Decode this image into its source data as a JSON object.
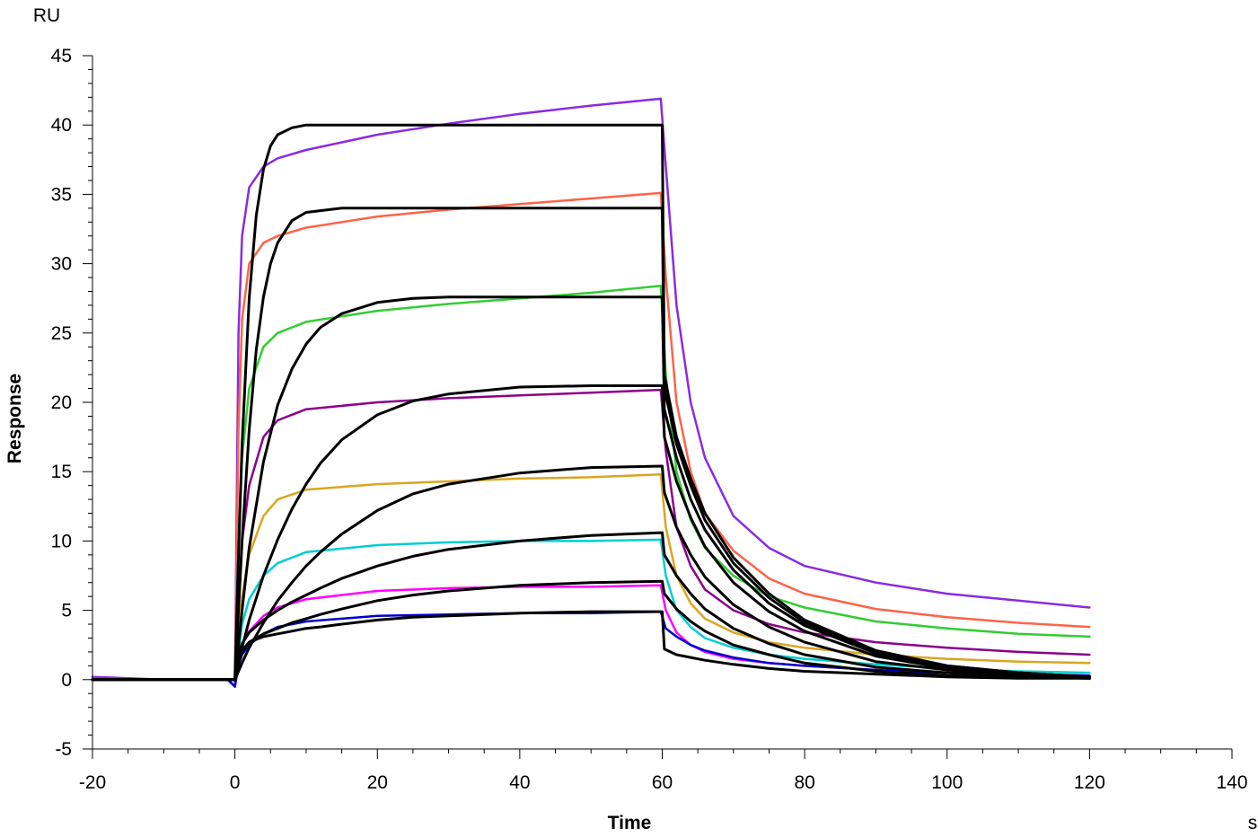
{
  "chart_data": {
    "type": "line",
    "title": "",
    "xlabel": "Time",
    "ylabel": "Response",
    "x_unit": "s",
    "y_unit": "RU",
    "xlim": [
      -20,
      140
    ],
    "ylim": [
      -5,
      45
    ],
    "x_ticks": [
      -20,
      0,
      20,
      40,
      60,
      80,
      100,
      120,
      140
    ],
    "y_ticks": [
      -5,
      0,
      5,
      10,
      15,
      20,
      25,
      30,
      35,
      40,
      45
    ],
    "x_tick_labels": [
      "-20",
      "0",
      "20",
      "40",
      "60",
      "80",
      "100",
      "120",
      "140"
    ],
    "y_tick_labels": [
      "-5",
      "0",
      "5",
      "10",
      "15",
      "20",
      "25",
      "30",
      "35",
      "40",
      "45"
    ],
    "grid": false,
    "legend": "none",
    "series": [
      {
        "color": "#8a2be2",
        "x": [
          -20,
          -10,
          -1,
          0,
          0.5,
          1,
          2,
          4,
          6,
          10,
          20,
          30,
          40,
          50,
          59.8,
          60.5,
          62,
          64,
          66,
          70,
          75,
          80,
          90,
          100,
          110,
          120
        ],
        "y": [
          0.2,
          0,
          0,
          -0.5,
          25,
          32,
          35.5,
          37,
          37.6,
          38.2,
          39.3,
          40.1,
          40.8,
          41.4,
          41.9,
          37,
          27,
          20,
          16,
          11.8,
          9.5,
          8.2,
          7,
          6.2,
          5.7,
          5.2
        ]
      },
      {
        "color": "#ff6347",
        "x": [
          -20,
          -10,
          -1,
          0,
          0.5,
          1,
          2,
          4,
          6,
          10,
          20,
          30,
          40,
          50,
          59.8,
          60.5,
          62,
          64,
          66,
          70,
          75,
          80,
          90,
          100,
          110,
          120
        ],
        "y": [
          0,
          0,
          0,
          -0.5,
          18,
          26,
          30,
          31.5,
          32,
          32.6,
          33.4,
          33.9,
          34.3,
          34.7,
          35.1,
          29,
          20,
          15,
          12,
          9.3,
          7.3,
          6.2,
          5.1,
          4.5,
          4.1,
          3.8
        ]
      },
      {
        "color": "#32cd32",
        "x": [
          -20,
          -10,
          -1,
          0,
          0.5,
          1,
          2,
          4,
          6,
          10,
          20,
          30,
          40,
          50,
          59.8,
          60.5,
          62,
          64,
          66,
          70,
          75,
          80,
          90,
          100,
          110,
          120
        ],
        "y": [
          0,
          0,
          0,
          -0.5,
          10,
          16,
          21,
          24,
          25,
          25.8,
          26.6,
          27.1,
          27.5,
          27.9,
          28.4,
          22,
          15,
          11.5,
          9.5,
          7.5,
          6,
          5.2,
          4.2,
          3.7,
          3.3,
          3.1
        ]
      },
      {
        "color": "#8b008b",
        "x": [
          -20,
          -10,
          -1,
          0,
          0.5,
          1,
          2,
          4,
          6,
          10,
          20,
          30,
          40,
          50,
          59.8,
          60.5,
          62,
          64,
          66,
          70,
          75,
          80,
          90,
          100,
          110,
          120
        ],
        "y": [
          0,
          0,
          0,
          -0.5,
          5,
          10,
          14,
          17.5,
          18.7,
          19.5,
          20,
          20.3,
          20.5,
          20.7,
          20.9,
          16.5,
          11,
          8.2,
          6.5,
          5,
          4,
          3.4,
          2.7,
          2.3,
          2,
          1.8
        ]
      },
      {
        "color": "#daa520",
        "x": [
          -20,
          -10,
          -1,
          0,
          0.5,
          1,
          2,
          4,
          6,
          10,
          20,
          30,
          40,
          50,
          59.8,
          60.5,
          62,
          64,
          66,
          70,
          75,
          80,
          90,
          100,
          110,
          120
        ],
        "y": [
          0,
          0,
          0,
          -0.5,
          3,
          6,
          9,
          11.8,
          13,
          13.7,
          14.1,
          14.3,
          14.5,
          14.6,
          14.8,
          11,
          7.5,
          5.5,
          4.4,
          3.4,
          2.7,
          2.3,
          1.8,
          1.5,
          1.3,
          1.2
        ]
      },
      {
        "color": "#00ced1",
        "x": [
          -20,
          -10,
          -1,
          0,
          0.5,
          1,
          2,
          4,
          6,
          10,
          20,
          30,
          40,
          50,
          59.8,
          60.5,
          62,
          64,
          66,
          70,
          75,
          80,
          90,
          100,
          110,
          120
        ],
        "y": [
          0,
          0,
          0,
          -0.5,
          2,
          4,
          5.8,
          7.5,
          8.4,
          9.2,
          9.7,
          9.9,
          10,
          10,
          10.1,
          7.5,
          5,
          3.8,
          3,
          2.3,
          1.8,
          1.5,
          1.1,
          0.8,
          0.6,
          0.5
        ]
      },
      {
        "color": "#ff00ff",
        "x": [
          -20,
          -10,
          -1,
          0,
          0.5,
          1,
          2,
          4,
          6,
          10,
          20,
          30,
          40,
          50,
          59.8,
          60.5,
          62,
          64,
          66,
          70,
          75,
          80,
          90,
          100,
          110,
          120
        ],
        "y": [
          0,
          0,
          0,
          -0.5,
          1.5,
          2.5,
          3.5,
          4.6,
          5.2,
          5.8,
          6.4,
          6.6,
          6.7,
          6.7,
          6.8,
          5,
          3.4,
          2.5,
          2,
          1.5,
          1.2,
          1,
          0.7,
          0.5,
          0.4,
          0.3
        ]
      },
      {
        "color": "#0000cd",
        "x": [
          -20,
          -10,
          -1,
          0,
          0.5,
          1,
          2,
          4,
          6,
          10,
          20,
          30,
          40,
          50,
          59.8,
          60.5,
          62,
          64,
          66,
          70,
          75,
          80,
          90,
          100,
          110,
          120
        ],
        "y": [
          0,
          0,
          0,
          -0.5,
          1,
          1.8,
          2.5,
          3.3,
          3.8,
          4.2,
          4.6,
          4.7,
          4.8,
          4.8,
          4.9,
          3.7,
          3.1,
          2.5,
          2.1,
          1.6,
          1.2,
          1,
          0.7,
          0.5,
          0.4,
          0.3
        ]
      },
      {
        "color": "#000000",
        "x": [
          -20,
          -10,
          -1,
          0,
          0.5,
          1,
          2,
          3,
          4,
          5,
          6,
          8,
          10,
          15,
          20,
          30,
          40,
          50,
          60,
          60.3,
          62,
          64,
          66,
          70,
          75,
          80,
          90,
          100,
          110,
          120
        ],
        "y": [
          0,
          0,
          0,
          0,
          9,
          17,
          27.5,
          33.5,
          36.8,
          38.5,
          39.3,
          39.8,
          40,
          40,
          40,
          40,
          40,
          40,
          40,
          22,
          17.5,
          14.5,
          12,
          8.8,
          6.2,
          4.3,
          2.1,
          1,
          0.5,
          0.2
        ]
      },
      {
        "color": "#000000",
        "x": [
          -20,
          -10,
          -1,
          0,
          0.5,
          1,
          2,
          3,
          4,
          5,
          6,
          8,
          10,
          15,
          20,
          30,
          40,
          50,
          60,
          60.3,
          62,
          64,
          66,
          70,
          75,
          80,
          90,
          100,
          110,
          120
        ],
        "y": [
          0,
          0,
          0,
          0,
          5,
          10,
          18,
          23.8,
          27.6,
          30,
          31.5,
          33.1,
          33.7,
          34,
          34,
          34,
          34,
          34,
          34,
          21,
          17,
          14,
          11.5,
          8.4,
          5.9,
          4.1,
          2,
          1,
          0.5,
          0.2
        ]
      },
      {
        "color": "#000000",
        "x": [
          -20,
          -10,
          -1,
          0,
          0.5,
          1,
          2,
          4,
          6,
          8,
          10,
          12,
          15,
          20,
          25,
          30,
          40,
          50,
          60,
          60.3,
          62,
          64,
          66,
          70,
          75,
          80,
          90,
          100,
          110,
          120
        ],
        "y": [
          0,
          0,
          0,
          0,
          2.5,
          5,
          9.5,
          15.7,
          19.8,
          22.4,
          24.2,
          25.4,
          26.4,
          27.2,
          27.5,
          27.6,
          27.6,
          27.6,
          27.6,
          19.5,
          16,
          13,
          10.8,
          7.9,
          5.5,
          3.9,
          1.9,
          0.9,
          0.5,
          0.2
        ]
      },
      {
        "color": "#000000",
        "x": [
          -20,
          -10,
          -1,
          0,
          0.5,
          1,
          2,
          4,
          6,
          8,
          10,
          12,
          15,
          20,
          25,
          30,
          40,
          50,
          60,
          60.3,
          62,
          64,
          66,
          70,
          75,
          80,
          90,
          100,
          110,
          120
        ],
        "y": [
          0,
          0,
          0,
          0,
          1.2,
          2.3,
          4.3,
          7.5,
          10.1,
          12.3,
          14.1,
          15.6,
          17.3,
          19.1,
          20.1,
          20.6,
          21.1,
          21.2,
          21.2,
          17.5,
          14.3,
          11.7,
          9.6,
          7,
          4.9,
          3.5,
          1.7,
          0.8,
          0.4,
          0.2
        ]
      },
      {
        "color": "#000000",
        "x": [
          -20,
          -10,
          -1,
          0,
          0.5,
          1,
          2,
          4,
          6,
          8,
          10,
          12,
          15,
          20,
          25,
          30,
          40,
          50,
          60,
          60.3,
          62,
          64,
          66,
          70,
          75,
          80,
          90,
          100,
          110,
          120
        ],
        "y": [
          0,
          0,
          0,
          0,
          0.6,
          1.2,
          2.3,
          4.1,
          5.7,
          7,
          8.2,
          9.2,
          10.5,
          12.2,
          13.4,
          14.1,
          14.9,
          15.3,
          15.4,
          13.5,
          11,
          9,
          7.4,
          5.4,
          3.8,
          2.7,
          1.3,
          0.7,
          0.3,
          0.2
        ]
      },
      {
        "color": "#000000",
        "x": [
          -20,
          -10,
          -1,
          0,
          0.5,
          1,
          2,
          4,
          6,
          8,
          10,
          12,
          15,
          20,
          25,
          30,
          40,
          50,
          60,
          60.3,
          62,
          64,
          66,
          70,
          75,
          80,
          90,
          100,
          110,
          120
        ],
        "y": [
          0,
          0,
          0,
          0,
          1.8,
          2.6,
          3.4,
          4.3,
          5,
          5.6,
          6.1,
          6.6,
          7.3,
          8.2,
          8.9,
          9.4,
          10,
          10.4,
          10.6,
          9,
          7.5,
          6.2,
          5.1,
          3.7,
          2.6,
          1.8,
          0.9,
          0.5,
          0.2,
          0.1
        ]
      },
      {
        "color": "#000000",
        "x": [
          -20,
          -10,
          -1,
          0,
          0.5,
          1,
          2,
          4,
          6,
          8,
          10,
          12,
          15,
          20,
          25,
          30,
          40,
          50,
          60,
          60.3,
          62,
          64,
          66,
          70,
          75,
          80,
          90,
          100,
          110,
          120
        ],
        "y": [
          0,
          0,
          0,
          0,
          1.5,
          2.1,
          2.7,
          3.3,
          3.7,
          4.1,
          4.4,
          4.7,
          5.1,
          5.7,
          6.1,
          6.4,
          6.8,
          7,
          7.1,
          6.2,
          5.1,
          4.2,
          3.5,
          2.5,
          1.8,
          1.2,
          0.6,
          0.3,
          0.2,
          0.1
        ]
      },
      {
        "color": "#000000",
        "x": [
          -20,
          -10,
          -1,
          0,
          0.5,
          1,
          2,
          4,
          6,
          8,
          10,
          12,
          15,
          20,
          25,
          30,
          40,
          50,
          60,
          60.3,
          62,
          64,
          66,
          70,
          75,
          80,
          90,
          100,
          110,
          120
        ],
        "y": [
          0,
          0,
          0,
          0,
          1.1,
          2,
          2.7,
          3.1,
          3.3,
          3.5,
          3.7,
          3.8,
          4,
          4.3,
          4.5,
          4.6,
          4.8,
          4.9,
          4.9,
          2.2,
          1.8,
          1.6,
          1.4,
          1.1,
          0.8,
          0.6,
          0.4,
          0.2,
          0.1,
          0.1
        ]
      }
    ]
  }
}
